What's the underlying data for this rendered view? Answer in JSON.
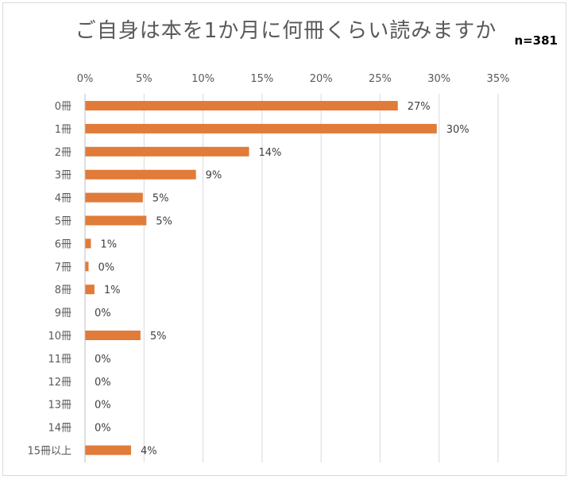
{
  "chart_data": {
    "type": "bar",
    "orientation": "horizontal",
    "title": "ご自身は本を1か月に何冊くらい読みますか",
    "sample_size": "n=381",
    "categories": [
      "0冊",
      "1冊",
      "2冊",
      "3冊",
      "4冊",
      "5冊",
      "6冊",
      "7冊",
      "8冊",
      "9冊",
      "10冊",
      "11冊",
      "12冊",
      "13冊",
      "14冊",
      "15冊以上"
    ],
    "values": [
      26.5,
      29.8,
      13.9,
      9.4,
      4.9,
      5.2,
      0.5,
      0.3,
      0.8,
      0,
      4.7,
      0,
      0,
      0,
      0,
      3.9
    ],
    "value_labels": [
      "27%",
      "30%",
      "14%",
      "9%",
      "5%",
      "5%",
      "1%",
      "0%",
      "1%",
      "0%",
      "5%",
      "0%",
      "0%",
      "0%",
      "0%",
      "4%"
    ],
    "x_ticks": [
      "0%",
      "5%",
      "10%",
      "15%",
      "20%",
      "25%",
      "30%",
      "35%"
    ],
    "xlim": [
      0,
      35
    ],
    "x_axis_position": "top",
    "grid": true,
    "bar_color": "#e07b39",
    "grid_color": "#d9d9d9"
  }
}
